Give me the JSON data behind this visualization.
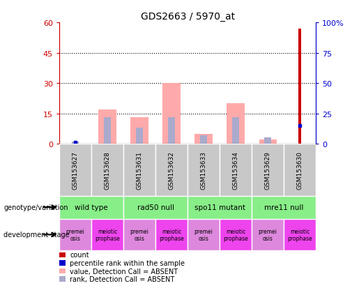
{
  "title": "GDS2663 / 5970_at",
  "samples": [
    "GSM153627",
    "GSM153628",
    "GSM153631",
    "GSM153632",
    "GSM153633",
    "GSM153634",
    "GSM153629",
    "GSM153630"
  ],
  "count_values": [
    0,
    0,
    0,
    0,
    0,
    0,
    0,
    57
  ],
  "percentile_rank_values": [
    1,
    0,
    0,
    0,
    0,
    0,
    0,
    15
  ],
  "absent_value_bars": [
    0,
    17,
    13,
    30,
    5,
    20,
    2,
    0
  ],
  "absent_rank_bars": [
    1,
    13,
    8,
    13,
    4,
    13,
    3,
    0
  ],
  "left_ylim": [
    0,
    60
  ],
  "right_ylim": [
    0,
    100
  ],
  "left_yticks": [
    0,
    15,
    30,
    45,
    60
  ],
  "right_yticks": [
    0,
    25,
    50,
    75,
    100
  ],
  "left_yticklabels": [
    "0",
    "15",
    "30",
    "45",
    "60"
  ],
  "right_yticklabels": [
    "0",
    "25",
    "50",
    "75",
    "100%"
  ],
  "genotype_groups": [
    {
      "label": "wild type",
      "start": 0,
      "end": 2
    },
    {
      "label": "rad50 null",
      "start": 2,
      "end": 4
    },
    {
      "label": "spo11 mutant",
      "start": 4,
      "end": 6
    },
    {
      "label": "mre11 null",
      "start": 6,
      "end": 8
    }
  ],
  "dev_stage_labels": [
    "premei\nosis",
    "meiotic\nprophase",
    "premei\nosis",
    "meiotic\nprophase",
    "premei\nosis",
    "meiotic\nprophase",
    "premei\nosis",
    "meiotic\nprophase"
  ],
  "dev_premei_color": "#dd88dd",
  "dev_meiotic_color": "#ee44ee",
  "genotype_color": "#88ee88",
  "count_color": "#cc0000",
  "percentile_color": "#0000cc",
  "absent_value_color": "#ffaaaa",
  "absent_rank_color": "#aaaacc",
  "sample_box_color": "#c8c8c8",
  "legend_items": [
    {
      "color": "#cc0000",
      "label": "count"
    },
    {
      "color": "#0000cc",
      "label": "percentile rank within the sample"
    },
    {
      "color": "#ffaaaa",
      "label": "value, Detection Call = ABSENT"
    },
    {
      "color": "#aaaacc",
      "label": "rank, Detection Call = ABSENT"
    }
  ],
  "background_color": "#ffffff",
  "left_axis_color": "#cc0000",
  "right_axis_color": "#0000cc"
}
